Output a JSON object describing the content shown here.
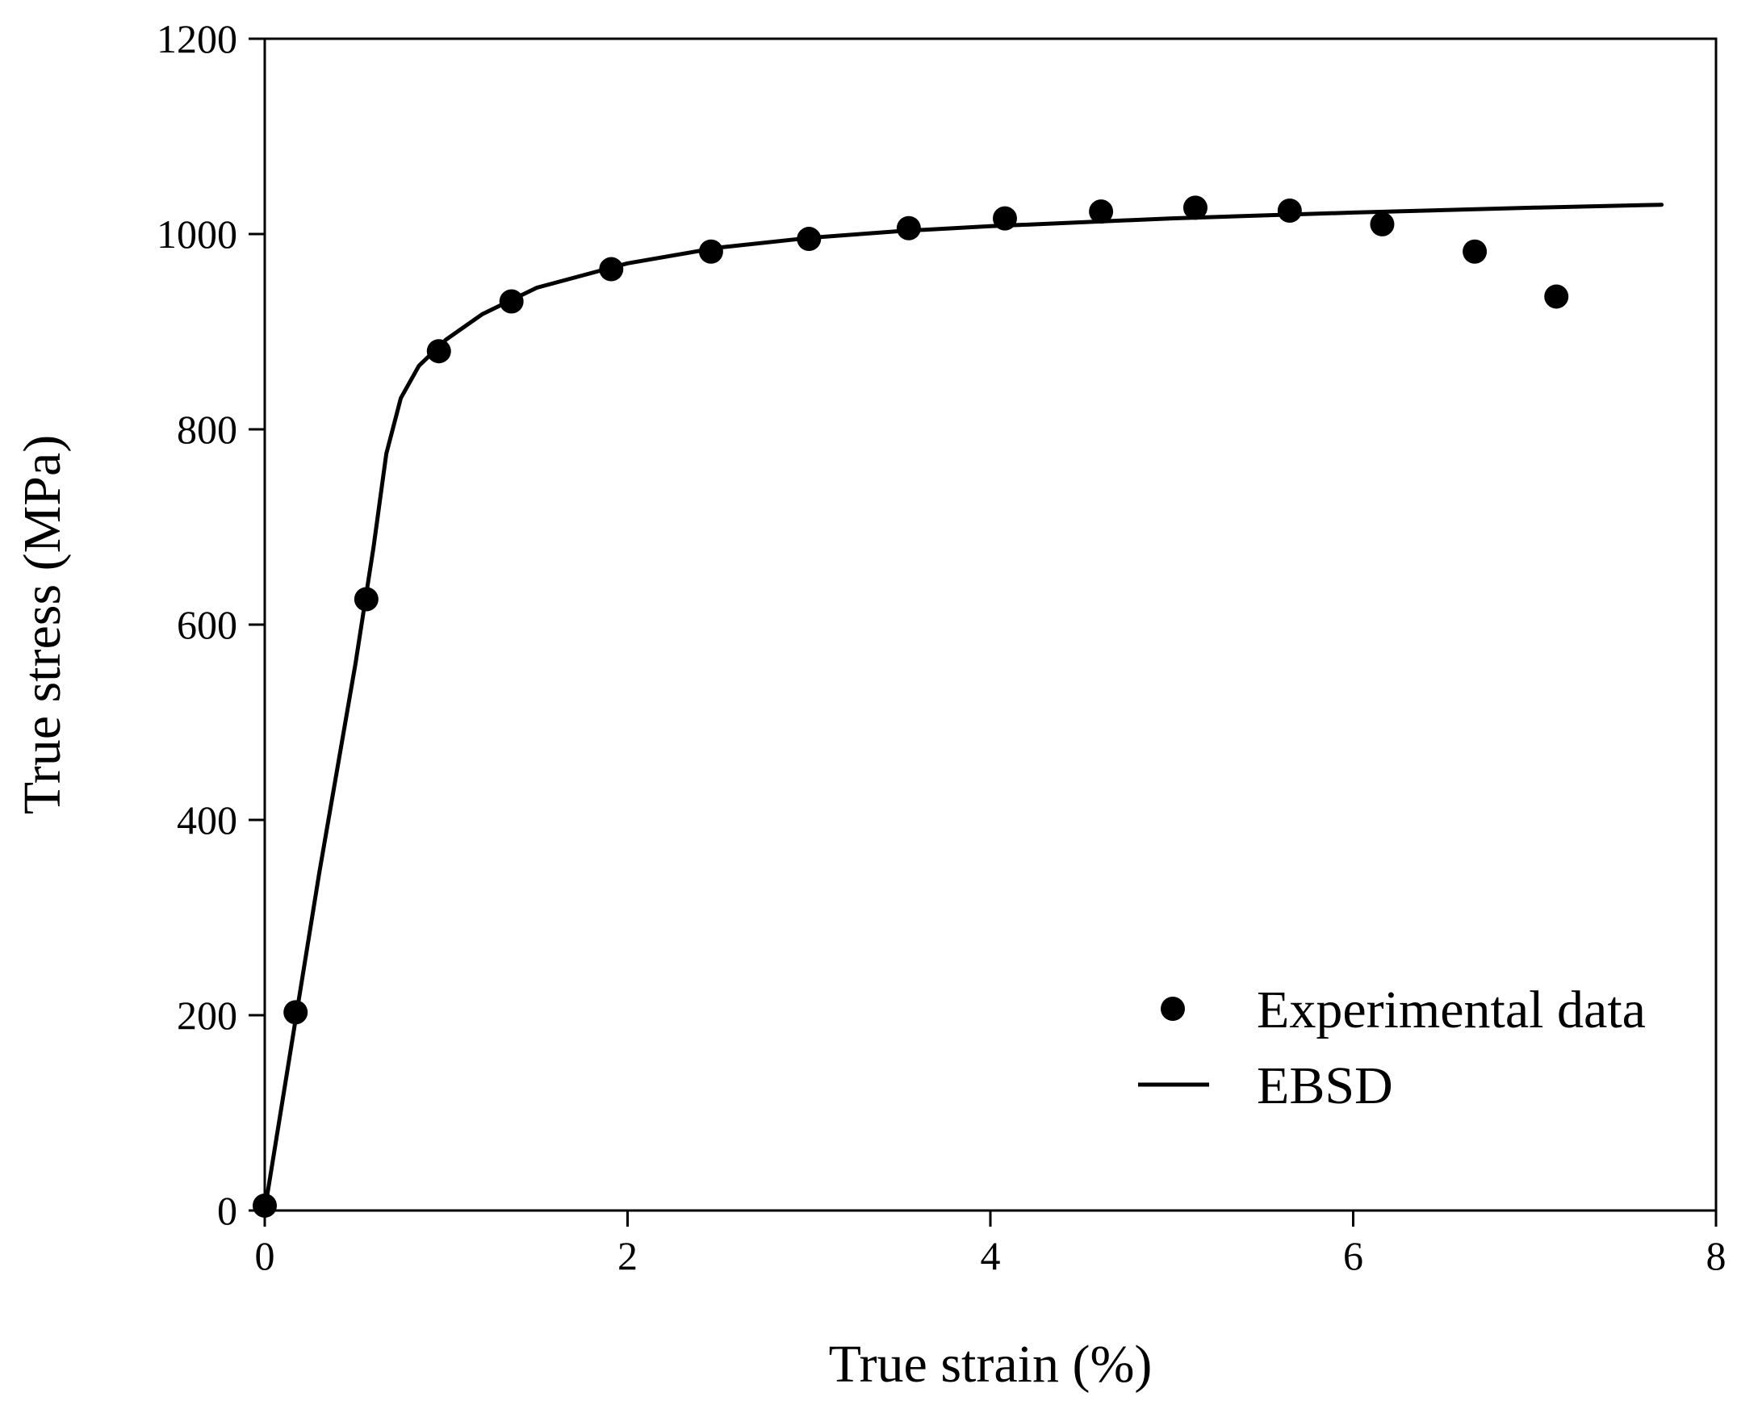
{
  "chart_data": {
    "type": "scatter",
    "xlabel": "True strain (%)",
    "ylabel": "True stress (MPa)",
    "xlim": [
      0,
      8
    ],
    "ylim": [
      0,
      1200
    ],
    "x_ticks": [
      0,
      2,
      4,
      6,
      8
    ],
    "y_ticks": [
      0,
      200,
      400,
      600,
      800,
      1000,
      1200
    ],
    "grid": false,
    "legend_position": "bottom-right",
    "series": [
      {
        "name": "Experimental data",
        "style": "markers",
        "color": "#000000",
        "x": [
          0.0,
          0.17,
          0.56,
          0.96,
          1.36,
          1.91,
          2.46,
          3.0,
          3.55,
          4.08,
          4.61,
          5.13,
          5.65,
          6.16,
          6.67,
          7.12
        ],
        "y": [
          5,
          203,
          626,
          880,
          931,
          964,
          982,
          995,
          1006,
          1016,
          1023,
          1027,
          1024,
          1010,
          982,
          936
        ]
      },
      {
        "name": "EBSD",
        "style": "line",
        "color": "#000000",
        "x": [
          0.0,
          0.1,
          0.3,
          0.5,
          0.6,
          0.67,
          0.75,
          0.85,
          1.0,
          1.2,
          1.5,
          2.0,
          2.5,
          3.0,
          3.5,
          4.0,
          5.0,
          6.0,
          7.0,
          7.7
        ],
        "y": [
          0,
          115,
          345,
          560,
          680,
          775,
          832,
          865,
          892,
          918,
          945,
          970,
          986,
          996,
          1003,
          1008,
          1016,
          1022,
          1027,
          1030
        ]
      }
    ]
  }
}
